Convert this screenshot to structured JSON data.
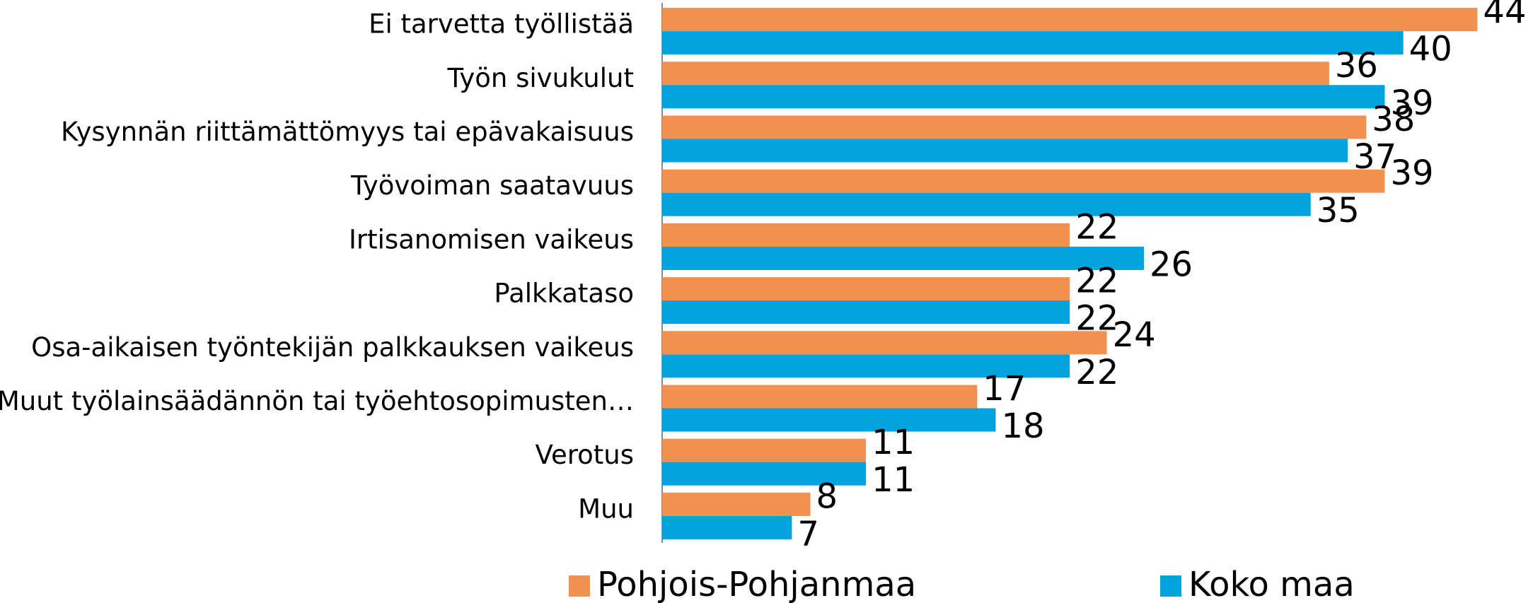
{
  "chart_data": {
    "type": "bar",
    "orientation": "horizontal",
    "categories": [
      "Ei tarvetta työllistää",
      "Työn sivukulut",
      "Kysynnän riittämättömyys tai epävakaisuus",
      "Työvoiman saatavuus",
      "Irtisanomisen vaikeus",
      "Palkkataso",
      "Osa-aikaisen työntekijän palkkauksen vaikeus",
      "Muut työlainsäädännön tai työehtosopimusten…",
      "Verotus",
      "Muu"
    ],
    "series": [
      {
        "name": "Pohjois-Pohjanmaa",
        "color": "#f0914f",
        "values": [
          44,
          36,
          38,
          39,
          22,
          22,
          24,
          17,
          11,
          8
        ]
      },
      {
        "name": "Koko maa",
        "color": "#00a3dd",
        "values": [
          40,
          39,
          37,
          35,
          26,
          22,
          22,
          18,
          11,
          7
        ]
      }
    ],
    "xlim": [
      0,
      47
    ],
    "legend": "bottom"
  }
}
